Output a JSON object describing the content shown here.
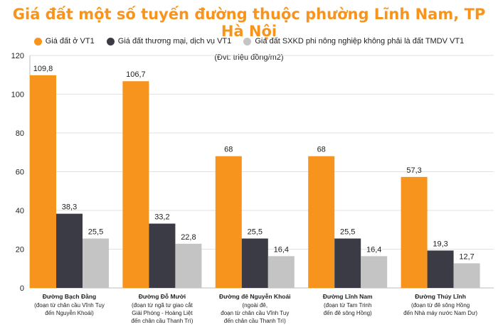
{
  "title": "Giá đất một số tuyến đường thuộc phường Lĩnh Nam, TP Hà Nội",
  "unit_note": "(Đvt: triệu đồng/m2)",
  "colors": {
    "title": "#f7941d",
    "orange": "#f7941d",
    "dark": "#3b3b45",
    "gray": "#c4c4c4"
  },
  "chart_data": {
    "type": "bar",
    "title": "Giá đất một số tuyến đường thuộc phường Lĩnh Nam, TP Hà Nội",
    "ylim": [
      0,
      120
    ],
    "yticks": [
      0,
      20,
      40,
      60,
      80,
      100,
      120
    ],
    "grid": true,
    "legend_position": "top",
    "categories": [
      {
        "name": "Đường Bạch Đằng",
        "desc": [
          "(đoạn từ chân cầu Vĩnh Tuy",
          "đến Nguyễn Khoái)"
        ]
      },
      {
        "name": "Đường Đỗ Mười",
        "desc": [
          "(đoạn từ ngã tư giao cắt",
          "Giải Phóng - Hoàng Liệt",
          "đến chân cầu Thanh Trì)"
        ]
      },
      {
        "name": "Đường đê Nguyễn Khoái",
        "desc": [
          "(ngoài đê,",
          "đoạn từ chân cầu Vĩnh Tuy",
          "đến chân cầu Thanh Trì)"
        ]
      },
      {
        "name": "Đường Lĩnh Nam",
        "desc": [
          "(đoạn từ Tam Trinh",
          "đến đê sông Hồng)"
        ]
      },
      {
        "name": "Đường Thúy Lĩnh",
        "desc": [
          "(đoạn từ đê sông Hồng",
          "đến Nhà máy nước Nam Dư)"
        ]
      }
    ],
    "series": [
      {
        "name": "Giá đất ở VT1",
        "color": "#f7941d",
        "values": [
          109.8,
          106.7,
          68,
          68,
          57.3
        ],
        "labels": [
          "109,8",
          "106,7",
          "68",
          "68",
          "57,3"
        ]
      },
      {
        "name": "Giá đất thương mại, dịch vụ VT1",
        "color": "#3b3b45",
        "values": [
          38.3,
          33.2,
          25.5,
          25.5,
          19.3
        ],
        "labels": [
          "38,3",
          "33,2",
          "25,5",
          "25,5",
          "19,3"
        ]
      },
      {
        "name": "Giá đất SXKD phi nông nghiệp không phải là đất TMDV VT1",
        "color": "#c4c4c4",
        "values": [
          25.5,
          22.8,
          16.4,
          16.4,
          12.7
        ],
        "labels": [
          "25,5",
          "22,8",
          "16,4",
          "16,4",
          "12,7"
        ]
      }
    ]
  }
}
